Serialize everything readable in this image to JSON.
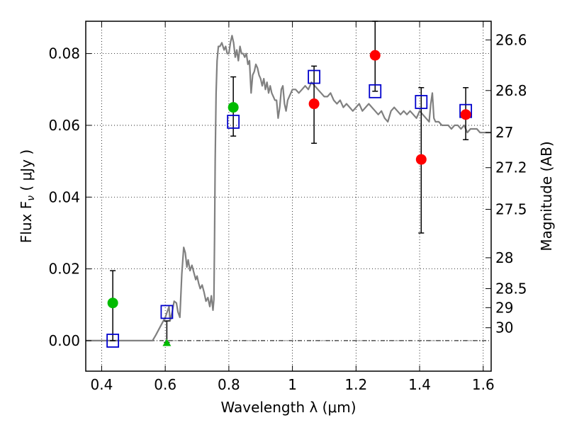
{
  "chart_data": {
    "type": "scatter",
    "xlabel": "Wavelength  λ (μm)",
    "ylabel": "Flux  F",
    "ylabel_sub": "ν",
    "ylabel_unit": " ( μJy )",
    "y2label": "Magnitude (AB)",
    "xlim": [
      0.35,
      1.625
    ],
    "ylim": [
      -0.0085,
      0.089
    ],
    "grid": true,
    "x_ticks": [
      0.4,
      0.6,
      0.8,
      1.0,
      1.2,
      1.4,
      1.6
    ],
    "x_tick_labels": [
      "0.4",
      "0.6",
      "0.8",
      "1",
      "1.2",
      "1.4",
      "1.6"
    ],
    "y_ticks": [
      0.0,
      0.02,
      0.04,
      0.06,
      0.08
    ],
    "y_tick_labels": [
      "0.00",
      "0.02",
      "0.04",
      "0.06",
      "0.08"
    ],
    "y2_ticks": [
      {
        "label": "26.6",
        "flux": 0.0838
      },
      {
        "label": "26.8",
        "flux": 0.0697
      },
      {
        "label": "27",
        "flux": 0.058
      },
      {
        "label": "27.2",
        "flux": 0.0482
      },
      {
        "label": "27.5",
        "flux": 0.0366
      },
      {
        "label": "28",
        "flux": 0.0231
      },
      {
        "label": "28.5",
        "flux": 0.0145
      },
      {
        "label": "29",
        "flux": 0.0092
      },
      {
        "label": "30",
        "flux": 0.0036
      }
    ],
    "model_sed": {
      "color": "#808080",
      "x": [
        0.35,
        0.56,
        0.57,
        0.585,
        0.6,
        0.612,
        0.615,
        0.622,
        0.628,
        0.635,
        0.64,
        0.646,
        0.652,
        0.658,
        0.663,
        0.668,
        0.672,
        0.678,
        0.684,
        0.69,
        0.696,
        0.7,
        0.705,
        0.71,
        0.716,
        0.722,
        0.728,
        0.734,
        0.74,
        0.745,
        0.75,
        0.753,
        0.755,
        0.757,
        0.76,
        0.763,
        0.767,
        0.772,
        0.778,
        0.785,
        0.79,
        0.795,
        0.8,
        0.805,
        0.81,
        0.815,
        0.82,
        0.825,
        0.83,
        0.835,
        0.84,
        0.845,
        0.85,
        0.855,
        0.86,
        0.865,
        0.87,
        0.875,
        0.88,
        0.885,
        0.89,
        0.895,
        0.9,
        0.905,
        0.91,
        0.915,
        0.92,
        0.925,
        0.93,
        0.935,
        0.94,
        0.945,
        0.95,
        0.955,
        0.96,
        0.965,
        0.97,
        0.975,
        0.98,
        0.985,
        0.99,
        0.995,
        1.0,
        1.01,
        1.02,
        1.03,
        1.04,
        1.05,
        1.06,
        1.07,
        1.08,
        1.09,
        1.1,
        1.11,
        1.12,
        1.13,
        1.14,
        1.15,
        1.16,
        1.17,
        1.18,
        1.19,
        1.2,
        1.21,
        1.22,
        1.23,
        1.24,
        1.25,
        1.26,
        1.27,
        1.28,
        1.29,
        1.3,
        1.31,
        1.32,
        1.33,
        1.34,
        1.35,
        1.36,
        1.37,
        1.38,
        1.39,
        1.4,
        1.41,
        1.42,
        1.43,
        1.435,
        1.44,
        1.445,
        1.45,
        1.46,
        1.47,
        1.48,
        1.49,
        1.5,
        1.51,
        1.52,
        1.53,
        1.54,
        1.55,
        1.56,
        1.57,
        1.58,
        1.59,
        1.6,
        1.61,
        1.625
      ],
      "y": [
        0.0,
        0.0,
        0.0015,
        0.004,
        0.0065,
        0.0095,
        0.0055,
        0.008,
        0.011,
        0.0105,
        0.008,
        0.0065,
        0.0185,
        0.026,
        0.0245,
        0.0205,
        0.0225,
        0.0195,
        0.021,
        0.019,
        0.017,
        0.018,
        0.016,
        0.0145,
        0.0155,
        0.0135,
        0.011,
        0.012,
        0.0095,
        0.0125,
        0.0085,
        0.0115,
        0.028,
        0.05,
        0.069,
        0.078,
        0.082,
        0.082,
        0.083,
        0.081,
        0.082,
        0.08,
        0.08,
        0.083,
        0.085,
        0.083,
        0.079,
        0.081,
        0.078,
        0.082,
        0.08,
        0.08,
        0.079,
        0.08,
        0.077,
        0.078,
        0.069,
        0.074,
        0.075,
        0.077,
        0.076,
        0.074,
        0.073,
        0.071,
        0.073,
        0.07,
        0.072,
        0.069,
        0.071,
        0.069,
        0.068,
        0.067,
        0.067,
        0.062,
        0.065,
        0.07,
        0.071,
        0.066,
        0.064,
        0.067,
        0.068,
        0.069,
        0.07,
        0.07,
        0.069,
        0.07,
        0.071,
        0.07,
        0.072,
        0.071,
        0.07,
        0.069,
        0.068,
        0.068,
        0.069,
        0.067,
        0.066,
        0.067,
        0.065,
        0.066,
        0.065,
        0.064,
        0.065,
        0.066,
        0.064,
        0.065,
        0.066,
        0.065,
        0.064,
        0.063,
        0.064,
        0.062,
        0.061,
        0.064,
        0.065,
        0.064,
        0.063,
        0.064,
        0.063,
        0.064,
        0.063,
        0.062,
        0.064,
        0.063,
        0.062,
        0.061,
        0.066,
        0.069,
        0.062,
        0.061,
        0.061,
        0.06,
        0.06,
        0.06,
        0.059,
        0.06,
        0.06,
        0.059,
        0.06,
        0.058,
        0.059,
        0.059,
        0.059,
        0.058,
        0.058,
        0.058,
        0.058
      ]
    },
    "series": [
      {
        "marker": "square",
        "color": "#0000cc",
        "points": [
          {
            "x": 0.435,
            "y": 0.0
          },
          {
            "x": 0.605,
            "y": 0.008
          },
          {
            "x": 0.814,
            "y": 0.061
          },
          {
            "x": 1.068,
            "y": 0.0735
          },
          {
            "x": 1.26,
            "y": 0.0695
          },
          {
            "x": 1.405,
            "y": 0.0665
          },
          {
            "x": 1.545,
            "y": 0.064
          }
        ]
      },
      {
        "marker": "circle",
        "color": "#ff0000",
        "points": [
          {
            "x": 1.068,
            "y": 0.066,
            "yerr_lo": 0.055,
            "yerr_hi": 0.0765
          },
          {
            "x": 1.26,
            "y": 0.0795,
            "yerr_lo": 0.0695,
            "yerr_hi": 0.089
          },
          {
            "x": 1.405,
            "y": 0.0505,
            "yerr_lo": 0.03,
            "yerr_hi": 0.0705
          },
          {
            "x": 1.545,
            "y": 0.063,
            "yerr_lo": 0.056,
            "yerr_hi": 0.0705
          }
        ]
      },
      {
        "marker": "circle",
        "color": "#00bb00",
        "points": [
          {
            "x": 0.435,
            "y": 0.0105,
            "yerr_lo": 0.0,
            "yerr_hi": 0.0195
          },
          {
            "x": 0.814,
            "y": 0.065,
            "yerr_lo": 0.057,
            "yerr_hi": 0.0735
          }
        ]
      },
      {
        "marker": "triangle",
        "color": "#00bb00",
        "points": [
          {
            "x": 0.605,
            "y": -0.0005,
            "yerr_lo": -0.0005,
            "yerr_hi": 0.0055
          }
        ]
      }
    ]
  }
}
